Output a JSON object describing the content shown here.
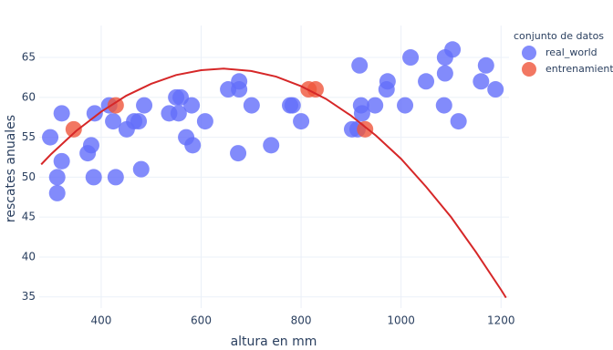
{
  "chart_data": {
    "type": "scatter",
    "x_label": "altura en mm",
    "y_label": "rescates anuales",
    "legend_title": "conjunto de datos",
    "legend_position": "right",
    "grid": true,
    "xlim": [
      276,
      1216
    ],
    "ylim": [
      33.6,
      69
    ],
    "xticks": [
      400,
      600,
      800,
      1000,
      1200
    ],
    "yticks": [
      35,
      40,
      45,
      50,
      55,
      60,
      65
    ],
    "series": [
      {
        "name": "real_world",
        "color": "#636efa",
        "x": [
          298,
          321,
          312,
          312,
          321,
          373,
          380,
          387,
          385,
          416,
          424,
          429,
          451,
          466,
          475,
          486,
          480,
          536,
          550,
          559,
          555,
          570,
          581,
          583,
          608,
          654,
          676,
          676,
          674,
          701,
          740,
          778,
          783,
          800,
          902,
          913,
          917,
          920,
          922,
          948,
          971,
          973,
          1008,
          1019,
          1050,
          1086,
          1088,
          1088,
          1103,
          1115,
          1160,
          1170,
          1189
        ],
        "values": [
          55,
          58,
          50,
          48,
          52,
          53,
          54,
          58,
          50,
          59,
          57,
          50,
          56,
          57,
          57,
          59,
          51,
          58,
          60,
          60,
          58,
          55,
          59,
          54,
          57,
          61,
          61,
          62,
          53,
          59,
          54,
          59,
          59,
          57,
          56,
          56,
          64,
          59,
          58,
          59,
          61,
          62,
          59,
          65,
          62,
          59,
          63,
          65,
          66,
          57,
          62,
          64,
          61
        ]
      },
      {
        "name": "entrenamiento",
        "color": "#ef553b",
        "x": [
          345,
          429,
          815,
          829,
          928
        ],
        "values": [
          56,
          59,
          61,
          61,
          56
        ]
      }
    ],
    "fit": {
      "type": "line",
      "color": "#d62728",
      "x": [
        280,
        300,
        350,
        400,
        450,
        500,
        550,
        600,
        645,
        700,
        750,
        800,
        850,
        900,
        950,
        1000,
        1050,
        1100,
        1150,
        1200,
        1210
      ],
      "values": [
        51.6,
        52.9,
        55.8,
        58.2,
        60.2,
        61.7,
        62.8,
        63.4,
        63.6,
        63.3,
        62.6,
        61.4,
        59.8,
        57.7,
        55.2,
        52.3,
        48.8,
        45.0,
        40.6,
        35.9,
        34.9
      ]
    }
  }
}
